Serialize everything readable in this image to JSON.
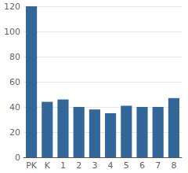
{
  "chart_data": {
    "type": "bar",
    "categories": [
      "PK",
      "K",
      "1",
      "2",
      "3",
      "4",
      "5",
      "6",
      "7",
      "8"
    ],
    "values": [
      120,
      44,
      46,
      40,
      38,
      35,
      41,
      40,
      40,
      47
    ],
    "color": "#336699",
    "ylim": [
      0,
      120
    ],
    "yticks": [
      0,
      20,
      40,
      60,
      80,
      100,
      120
    ],
    "grid": true
  }
}
